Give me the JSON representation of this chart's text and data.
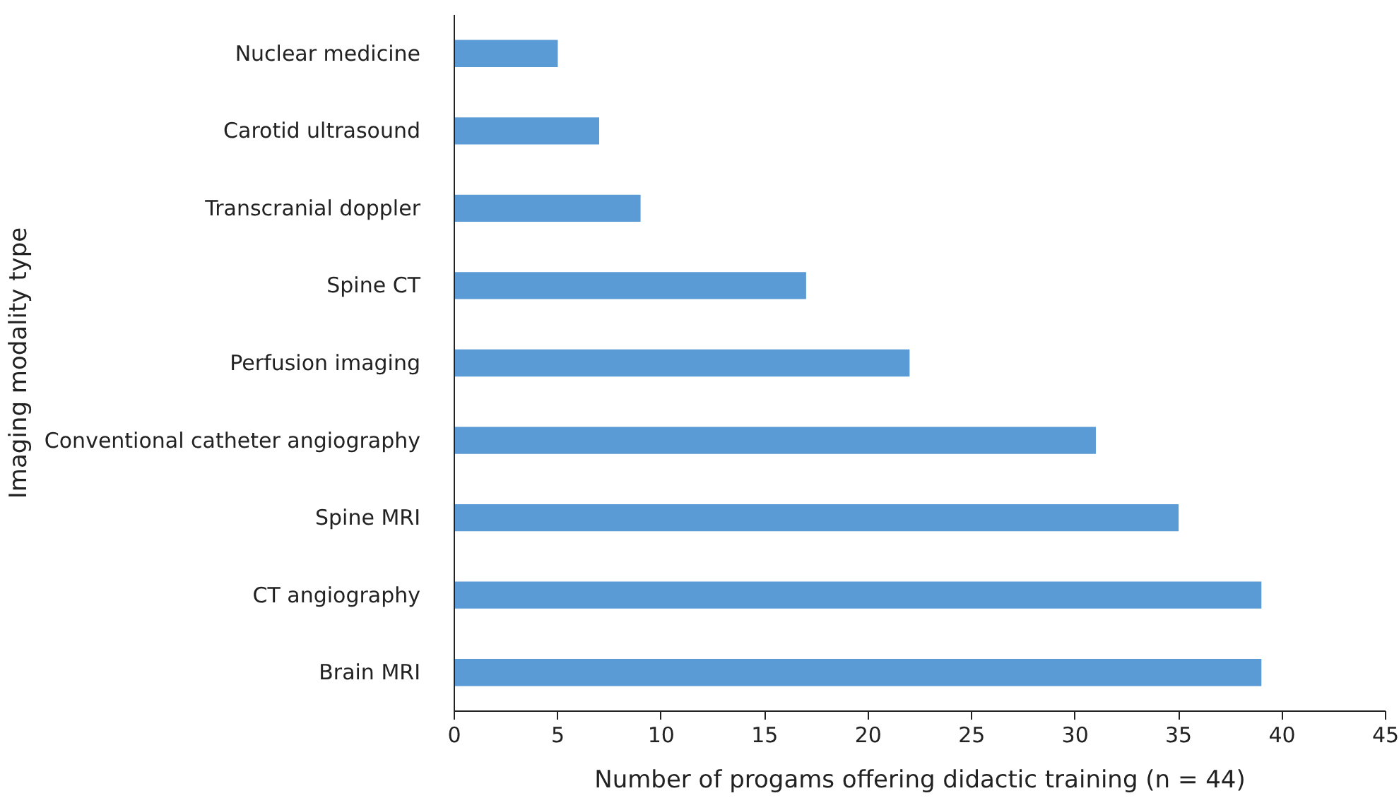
{
  "chart_data": {
    "type": "bar",
    "orientation": "horizontal",
    "xlabel": "Number of progams offering didactic training (n = 44)",
    "ylabel": "Imaging modality type",
    "categories": [
      "Nuclear medicine",
      "Carotid ultrasound",
      "Transcranial doppler",
      "Spine CT",
      "Perfusion imaging",
      "Conventional catheter angiography",
      "Spine MRI",
      "CT angiography",
      "Brain MRI"
    ],
    "values": [
      5,
      7,
      9,
      17,
      22,
      31,
      35,
      39,
      39
    ],
    "color": "#5b9bd5",
    "xlim": [
      0,
      45
    ],
    "xticks": [
      0,
      5,
      10,
      15,
      20,
      25,
      30,
      35,
      40,
      45
    ],
    "grid": false
  }
}
